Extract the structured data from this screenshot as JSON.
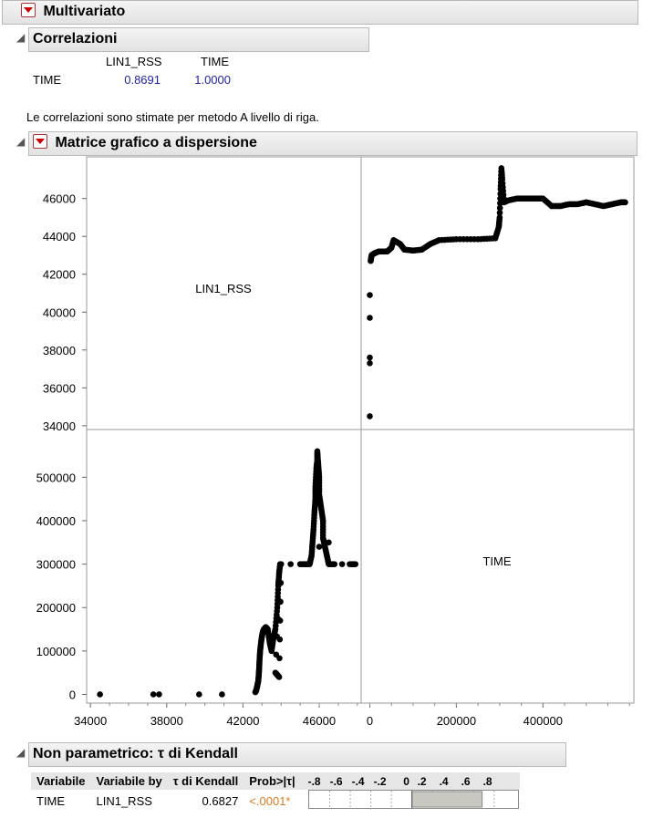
{
  "multivariato": {
    "title": "Multivariato"
  },
  "correlazioni": {
    "title": "Correlazioni",
    "col_headers": [
      "LIN1_RSS",
      "TIME"
    ],
    "row_label": "TIME",
    "values": [
      "0.8691",
      "1.0000"
    ],
    "note": "Le correlazioni sono stimate per metodo A livello di riga."
  },
  "matrice": {
    "title": "Matrice grafico a dispersione",
    "diag_label_1": "LIN1_RSS",
    "diag_label_2": "TIME",
    "y_ticks_top": [
      "46000",
      "44000",
      "42000",
      "40000",
      "38000",
      "36000",
      "34000"
    ],
    "y_ticks_bottom": [
      "500000",
      "400000",
      "300000",
      "200000",
      "100000",
      "0"
    ],
    "x_ticks_left": [
      "34000",
      "38000",
      "42000",
      "46000"
    ],
    "x_ticks_right": [
      "0",
      "200000",
      "400000"
    ]
  },
  "chart_data": {
    "type": "scatter",
    "title": "Matrice grafico a dispersione",
    "variables": [
      "LIN1_RSS",
      "TIME"
    ],
    "lin1_range": [
      33800,
      48200
    ],
    "time_range": [
      -20000,
      610000
    ],
    "series": [
      {
        "name": "TIME vs LIN1_RSS",
        "points": [
          [
            34500,
            0
          ],
          [
            37300,
            0
          ],
          [
            37600,
            0
          ],
          [
            39700,
            0
          ],
          [
            40900,
            0
          ],
          [
            42650,
            5000
          ],
          [
            42700,
            10000
          ],
          [
            42750,
            20000
          ],
          [
            42800,
            30000
          ],
          [
            42830,
            45000
          ],
          [
            42850,
            60000
          ],
          [
            42870,
            80000
          ],
          [
            42900,
            100000
          ],
          [
            42950,
            120000
          ],
          [
            43000,
            135000
          ],
          [
            43050,
            145000
          ],
          [
            43100,
            150000
          ],
          [
            43200,
            155000
          ],
          [
            43300,
            150000
          ],
          [
            43400,
            120000
          ],
          [
            43500,
            100000
          ],
          [
            43600,
            130000
          ],
          [
            43700,
            150000
          ],
          [
            43800,
            200000
          ],
          [
            43850,
            250000
          ],
          [
            43900,
            280000
          ],
          [
            43950,
            300000
          ],
          [
            43700,
            50000
          ],
          [
            43800,
            45000
          ],
          [
            43900,
            40000
          ],
          [
            44000,
            300000
          ],
          [
            44500,
            300000
          ],
          [
            45000,
            300000
          ],
          [
            45300,
            300000
          ],
          [
            45500,
            300000
          ],
          [
            45600,
            320000
          ],
          [
            45650,
            350000
          ],
          [
            45700,
            380000
          ],
          [
            45750,
            420000
          ],
          [
            45800,
            450000
          ],
          [
            45800,
            480000
          ],
          [
            45850,
            520000
          ],
          [
            45900,
            540000
          ],
          [
            45900,
            560000
          ],
          [
            45950,
            530000
          ],
          [
            46000,
            500000
          ],
          [
            46000,
            460000
          ],
          [
            46100,
            430000
          ],
          [
            46200,
            400000
          ],
          [
            46200,
            360000
          ],
          [
            46300,
            340000
          ],
          [
            46400,
            320000
          ],
          [
            46500,
            300000
          ],
          [
            46800,
            300000
          ],
          [
            47200,
            300000
          ],
          [
            47600,
            300000
          ],
          [
            47900,
            300000
          ],
          [
            46000,
            340000
          ],
          [
            46500,
            350000
          ]
        ]
      },
      {
        "name": "LIN1_RSS vs TIME",
        "points": [
          [
            0,
            34500
          ],
          [
            0,
            37300
          ],
          [
            0,
            37600
          ],
          [
            0,
            39700
          ],
          [
            0,
            40900
          ],
          [
            2000,
            42700
          ],
          [
            4000,
            43000
          ],
          [
            10000,
            43100
          ],
          [
            20000,
            43200
          ],
          [
            40000,
            43200
          ],
          [
            50000,
            43400
          ],
          [
            55000,
            43800
          ],
          [
            70000,
            43600
          ],
          [
            80000,
            43300
          ],
          [
            100000,
            43250
          ],
          [
            120000,
            43300
          ],
          [
            140000,
            43600
          ],
          [
            160000,
            43800
          ],
          [
            200000,
            43850
          ],
          [
            250000,
            43850
          ],
          [
            290000,
            43900
          ],
          [
            298000,
            44500
          ],
          [
            300000,
            45000
          ],
          [
            302000,
            46500
          ],
          [
            304000,
            47600
          ],
          [
            306000,
            47000
          ],
          [
            310000,
            45800
          ],
          [
            320000,
            45900
          ],
          [
            340000,
            46000
          ],
          [
            360000,
            46000
          ],
          [
            380000,
            46000
          ],
          [
            400000,
            46000
          ],
          [
            420000,
            45600
          ],
          [
            440000,
            45600
          ],
          [
            460000,
            45700
          ],
          [
            480000,
            45700
          ],
          [
            500000,
            45800
          ],
          [
            520000,
            45700
          ],
          [
            540000,
            45600
          ],
          [
            560000,
            45700
          ],
          [
            580000,
            45800
          ],
          [
            590000,
            45800
          ]
        ]
      }
    ]
  },
  "kendall": {
    "title": "Non parametrico: τ di Kendall",
    "headers": [
      "Variabile",
      "Variabile by",
      "τ di Kendall",
      "Prob>|τ|",
      "-.8",
      "-.6",
      "-.4",
      "-.2",
      "0",
      ".2",
      ".4",
      ".6",
      ".8"
    ],
    "row": {
      "var": "TIME",
      "by": "LIN1_RSS",
      "tau": "0.6827",
      "prob": "<.0001*"
    },
    "tau_value": 0.6827,
    "prob_color": "#e07a1f"
  }
}
